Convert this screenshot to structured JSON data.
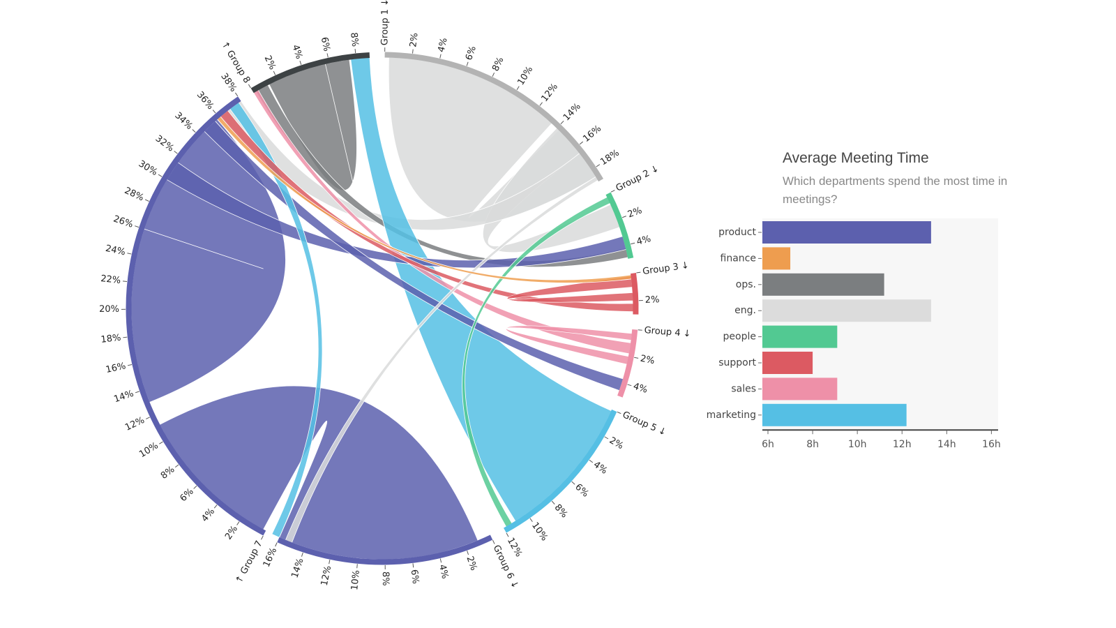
{
  "chart_data": [
    {
      "type": "chord",
      "title": "",
      "groups": [
        {
          "name": "Group 1 ↓",
          "pct": 19,
          "color": "#b3b3b3"
        },
        {
          "name": "Group 2 ↓",
          "pct": 5,
          "color": "#52c992"
        },
        {
          "name": "Group 3 ↓",
          "pct": 3,
          "color": "#dc5a62"
        },
        {
          "name": "Group 4 ↓",
          "pct": 5,
          "color": "#ee90a8"
        },
        {
          "name": "Group 5 ↓",
          "pct": 12,
          "color": "#55bfe4"
        },
        {
          "name": "Group 6 ↓",
          "pct": 16,
          "color": "#5c60ae"
        },
        {
          "name": "↑ Group 7",
          "pct": 38,
          "color": "#5c60ae"
        },
        {
          "name": "↑ Group 8",
          "pct": 9,
          "color": "#3d4244"
        }
      ],
      "ribbons": [
        {
          "source": [
            0,
            0.3,
            13.5
          ],
          "target": [
            0,
            14.2,
            18.6
          ],
          "color": "#d9dada"
        },
        {
          "source": [
            0,
            14.0,
            16.5
          ],
          "target": [
            1,
            0.8,
            2.6
          ],
          "color": "#d9dada"
        },
        {
          "source": [
            0,
            16.5,
            18.6
          ],
          "target": [
            6,
            36.2,
            38.0
          ],
          "color": "#d9dada"
        },
        {
          "source": [
            7,
            1.3,
            5.7
          ],
          "target": [
            7,
            5.7,
            7.5
          ],
          "color": "#7b7e80"
        },
        {
          "source": [
            7,
            0.2,
            1.2
          ],
          "target": [
            1,
            4.2,
            4.9
          ],
          "color": "#7b7e80"
        },
        {
          "source": [
            7,
            7.6,
            9.0
          ],
          "target": [
            4,
            0.1,
            11.0
          ],
          "color": "#55bfe4"
        },
        {
          "source": [
            6,
            13.0,
            26.0
          ],
          "target": [
            6,
            26.0,
            35.8
          ],
          "color": "#5c60ae"
        },
        {
          "source": [
            6,
            0.2,
            11.2
          ],
          "target": [
            5,
            1.0,
            16.0
          ],
          "color": "#5c60ae"
        },
        {
          "source": [
            6,
            30.0,
            31.5
          ],
          "target": [
            1,
            3.3,
            4.3
          ],
          "color": "#5c60ae"
        },
        {
          "source": [
            6,
            34.5,
            35.6
          ],
          "target": [
            3,
            3.7,
            4.6
          ],
          "color": "#5c60ae"
        },
        {
          "source": [
            7,
            0.0,
            0.4
          ],
          "target": [
            3,
            1.0,
            1.8
          ],
          "color": "#ee90a8"
        },
        {
          "source": [
            6,
            37.0,
            37.8
          ],
          "target": [
            5,
            16.0,
            16.6
          ],
          "color": "#55bfe4"
        },
        {
          "source": [
            6,
            36.1,
            36.8
          ],
          "target": [
            2,
            2.2,
            2.8
          ],
          "color": "#dc5a62"
        },
        {
          "source": [
            2,
            0.2,
            1.0
          ],
          "target": [
            2,
            1.4,
            2.0
          ],
          "color": "#dc5a62"
        },
        {
          "source": [
            1,
            0.2,
            0.7
          ],
          "target": [
            4,
            11.3,
            11.8
          ],
          "color": "#52c992"
        },
        {
          "source": [
            0,
            18.6,
            18.9
          ],
          "target": [
            5,
            15.0,
            15.5
          ],
          "color": "#d9dada"
        },
        {
          "source": [
            3,
            2.0,
            2.6
          ],
          "target": [
            3,
            0.3,
            0.8
          ],
          "color": "#ee90a8"
        },
        {
          "source": [
            6,
            35.8,
            36.1
          ],
          "target": [
            2,
            0.1,
            0.4
          ],
          "color": "#ee9d4f"
        }
      ]
    },
    {
      "type": "bar",
      "orientation": "horizontal",
      "title": "Average Meeting Time",
      "subtitle": "Which departments spend the most time in meetings?",
      "categories": [
        "product",
        "finance",
        "ops.",
        "eng.",
        "people",
        "support",
        "sales",
        "marketing"
      ],
      "values": [
        13.3,
        7.0,
        11.2,
        13.3,
        9.1,
        8.0,
        9.1,
        12.2
      ],
      "colors": [
        "#5c60ae",
        "#ee9d4f",
        "#7b7e80",
        "#dcdcdc",
        "#52c992",
        "#dc5a62",
        "#ee90a8",
        "#55bfe4"
      ],
      "xlim": [
        5.75,
        16.3
      ],
      "xticks": [
        6,
        8,
        10,
        12,
        14,
        16
      ],
      "tick_suffix": "h"
    }
  ]
}
